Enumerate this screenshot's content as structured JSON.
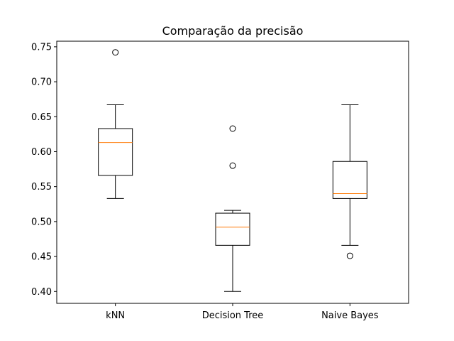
{
  "chart_data": {
    "type": "box",
    "title": "Comparação da precisão",
    "xlabel": "",
    "ylabel": "",
    "categories": [
      "kNN",
      "Decision Tree",
      "Naive Bayes"
    ],
    "ylim": [
      0.383,
      0.758
    ],
    "yticks": [
      0.4,
      0.45,
      0.5,
      0.55,
      0.6,
      0.65,
      0.7,
      0.75
    ],
    "ytick_labels": [
      "0.40",
      "0.45",
      "0.50",
      "0.55",
      "0.60",
      "0.65",
      "0.70",
      "0.75"
    ],
    "grid": false,
    "boxes": [
      {
        "category": "kNN",
        "whisker_low": 0.533,
        "q1": 0.566,
        "median": 0.613,
        "q3": 0.633,
        "whisker_high": 0.667,
        "fliers": [
          0.742
        ]
      },
      {
        "category": "Decision Tree",
        "whisker_low": 0.4,
        "q1": 0.466,
        "median": 0.492,
        "q3": 0.512,
        "whisker_high": 0.516,
        "fliers": [
          0.58,
          0.633
        ]
      },
      {
        "category": "Naive Bayes",
        "whisker_low": 0.466,
        "q1": 0.533,
        "median": 0.54,
        "q3": 0.586,
        "whisker_high": 0.667,
        "fliers": [
          0.451
        ]
      }
    ],
    "colors": {
      "box": "#000000",
      "median": "#ff7f0e",
      "flier": "#000000"
    }
  }
}
